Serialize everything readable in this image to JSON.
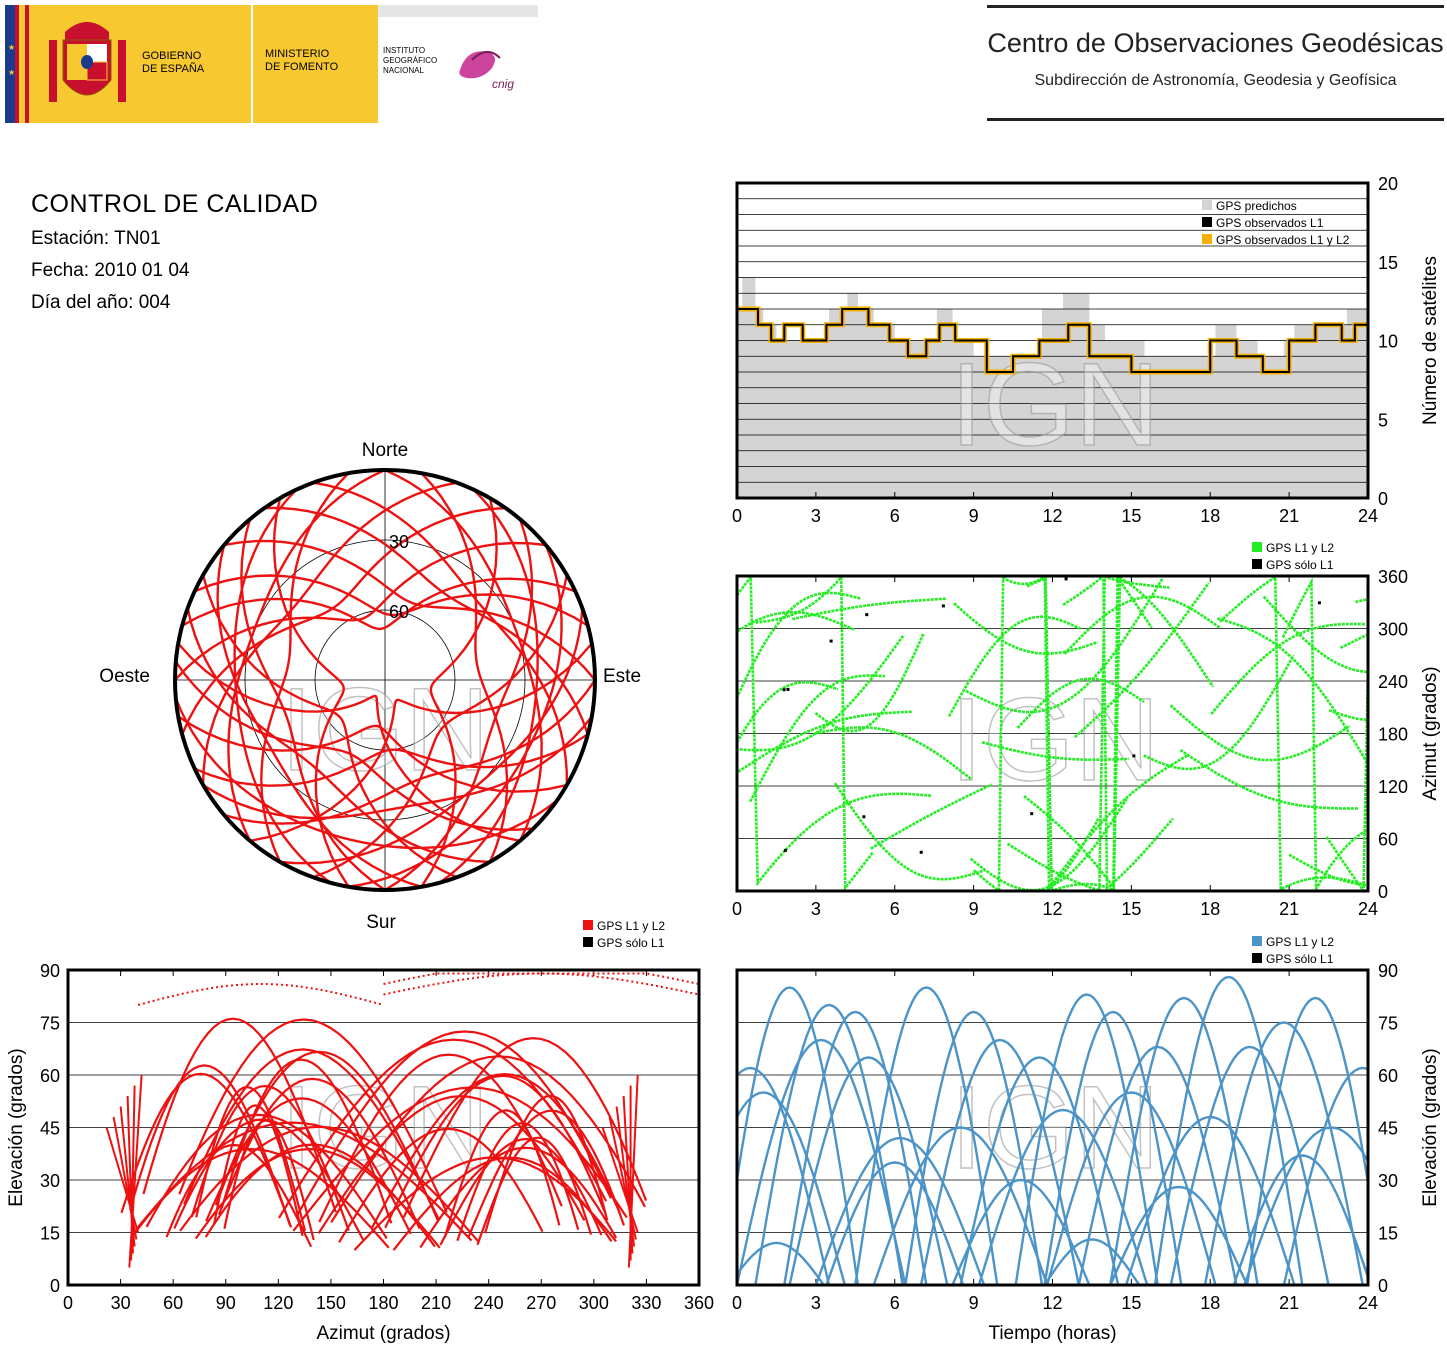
{
  "header": {
    "gobierno_line1": "GOBIERNO",
    "gobierno_line2": "DE ESPAÑA",
    "ministerio_line1": "MINISTERIO",
    "ministerio_line2": "DE FOMENTO",
    "ign_line1": "INSTITUTO",
    "ign_line2": "GEOGRÁFICO",
    "ign_line3": "NACIONAL",
    "cnig": "cnig",
    "center_title": "Centro de Observaciones Geodésicas",
    "center_subtitle": "Subdirección de Astronomía, Geodesia y Geofísica"
  },
  "info": {
    "title": "CONTROL DE CALIDAD",
    "station": "Estación: TN01",
    "date": "Fecha: 2010 01 04",
    "doy": "Día del año: 004"
  },
  "watermark": "IGN",
  "colors": {
    "red": "#ee1111",
    "green": "#22ee22",
    "blue": "#4c94c8",
    "gray": "#d4d4d4",
    "orange": "#f5b000",
    "black": "#000000"
  },
  "chart_data": [
    {
      "id": "satellite-count",
      "type": "area",
      "ylabel": "Número de satélites",
      "xlim": [
        0,
        24
      ],
      "ylim": [
        0,
        20
      ],
      "xticks": [
        0,
        3,
        6,
        9,
        12,
        15,
        18,
        21,
        24
      ],
      "yticks": [
        0,
        5,
        10,
        15,
        20
      ],
      "legend": [
        "GPS predichos",
        "GPS observados L1",
        "GPS observados L1 y L2"
      ],
      "legend_position": "top-right",
      "series": [
        {
          "name": "GPS predichos",
          "step_x": [
            0,
            0.2,
            0.7,
            1.0,
            1.5,
            2.0,
            3.2,
            3.5,
            4.2,
            4.6,
            5.2,
            6.0,
            7.0,
            7.6,
            8.2,
            9.0,
            10.0,
            11.6,
            12.4,
            13.4,
            14.0,
            15.5,
            17.4,
            18.2,
            19.0,
            19.8,
            20.8,
            21.2,
            22.0,
            23.2,
            24.0
          ],
          "y": [
            12,
            14,
            12,
            11,
            10,
            10,
            10,
            12,
            13,
            12,
            11,
            10,
            10,
            12,
            10,
            9,
            9,
            12,
            13,
            11,
            10,
            9,
            9,
            11,
            10,
            9,
            10,
            11,
            11,
            12,
            11
          ]
        },
        {
          "name": "GPS observados L1",
          "step_x": [
            0,
            0.8,
            1.3,
            1.8,
            2.5,
            3.4,
            4.0,
            5.0,
            5.8,
            6.5,
            7.2,
            7.7,
            8.3,
            9.5,
            10.5,
            11.5,
            12.6,
            13.4,
            14.2,
            15.0,
            16.0,
            17.3,
            18.0,
            19.0,
            20.0,
            21.0,
            22.0,
            23.0,
            23.5
          ],
          "y": [
            12,
            11,
            10,
            11,
            10,
            11,
            12,
            11,
            10,
            9,
            10,
            11,
            10,
            8,
            9,
            10,
            11,
            9,
            9,
            8,
            8,
            8,
            10,
            9,
            8,
            10,
            11,
            10,
            11
          ]
        },
        {
          "name": "GPS observados L1 y L2",
          "step_x": [
            0,
            0.8,
            1.3,
            1.8,
            2.5,
            3.4,
            4.0,
            5.0,
            5.8,
            6.5,
            7.2,
            7.7,
            8.3,
            9.5,
            10.5,
            11.5,
            12.6,
            13.4,
            14.2,
            15.0,
            16.0,
            17.3,
            18.0,
            19.0,
            20.0,
            21.0,
            22.0,
            23.0,
            23.5
          ],
          "y": [
            12,
            11,
            10,
            11,
            10,
            11,
            12,
            11,
            10,
            9,
            10,
            11,
            10,
            8,
            9,
            10,
            11,
            9,
            9,
            8,
            8,
            8,
            10,
            9,
            8,
            10,
            11,
            10,
            11
          ]
        }
      ]
    },
    {
      "id": "skyplot",
      "type": "scatter",
      "labels": {
        "north": "Norte",
        "south": "Sur",
        "east": "Este",
        "west": "Oeste"
      },
      "rings": [
        30,
        60
      ],
      "tracks": [
        {
          "peak_az": 5,
          "max_el": 62
        },
        {
          "peak_az": 20,
          "max_el": 55
        },
        {
          "peak_az": 35,
          "max_el": 45
        },
        {
          "peak_az": 50,
          "max_el": 38
        },
        {
          "peak_az": 70,
          "max_el": 30
        },
        {
          "peak_az": 95,
          "max_el": 25
        },
        {
          "peak_az": 120,
          "max_el": 22
        },
        {
          "peak_az": 140,
          "max_el": 30
        },
        {
          "peak_az": 160,
          "max_el": 45
        },
        {
          "peak_az": 175,
          "max_el": 60
        },
        {
          "peak_az": 190,
          "max_el": 70
        },
        {
          "peak_az": 205,
          "max_el": 55
        },
        {
          "peak_az": 220,
          "max_el": 42
        },
        {
          "peak_az": 240,
          "max_el": 33
        },
        {
          "peak_az": 265,
          "max_el": 26
        },
        {
          "peak_az": 290,
          "max_el": 30
        },
        {
          "peak_az": 310,
          "max_el": 40
        },
        {
          "peak_az": 325,
          "max_el": 52
        },
        {
          "peak_az": 340,
          "max_el": 62
        },
        {
          "peak_az": 355,
          "max_el": 68
        },
        {
          "peak_az": 100,
          "max_el": 70
        },
        {
          "peak_az": 260,
          "max_el": 72
        },
        {
          "peak_az": 150,
          "max_el": 80
        },
        {
          "peak_az": 210,
          "max_el": 82
        },
        {
          "peak_az": 80,
          "max_el": 50
        },
        {
          "peak_az": 280,
          "max_el": 48
        },
        {
          "peak_az": 130,
          "max_el": 58
        },
        {
          "peak_az": 230,
          "max_el": 65
        },
        {
          "peak_az": 170,
          "max_el": 35
        },
        {
          "peak_az": 195,
          "max_el": 20
        },
        {
          "peak_az": 110,
          "max_el": 40
        },
        {
          "peak_az": 250,
          "max_el": 45
        }
      ]
    },
    {
      "id": "azimuth-time",
      "type": "scatter",
      "ylabel": "Azimut (grados)",
      "xlim": [
        0,
        24
      ],
      "ylim": [
        0,
        360
      ],
      "xticks": [
        0,
        3,
        6,
        9,
        12,
        15,
        18,
        21,
        24
      ],
      "yticks": [
        0,
        60,
        120,
        180,
        240,
        300,
        360
      ],
      "legend": [
        "GPS L1 y L2",
        "GPS sólo L1"
      ],
      "legend_position": "top-right"
    },
    {
      "id": "elevation-azimuth",
      "type": "scatter",
      "xlabel": "Azimut (grados)",
      "ylabel": "Elevación (grados)",
      "xlim": [
        0,
        360
      ],
      "ylim": [
        0,
        90
      ],
      "xticks": [
        0,
        30,
        60,
        90,
        120,
        150,
        180,
        210,
        240,
        270,
        300,
        330,
        360
      ],
      "yticks": [
        0,
        15,
        30,
        45,
        60,
        75,
        90
      ],
      "legend": [
        "GPS L1 y L2",
        "GPS sólo L1"
      ],
      "legend_position": "top-right"
    },
    {
      "id": "elevation-time",
      "type": "line",
      "xlabel": "Tiempo (horas)",
      "ylabel": "Elevación (grados)",
      "xlim": [
        0,
        24
      ],
      "ylim": [
        0,
        90
      ],
      "xticks": [
        0,
        3,
        6,
        9,
        12,
        15,
        18,
        21,
        24
      ],
      "yticks": [
        0,
        15,
        30,
        45,
        60,
        75,
        90
      ],
      "legend": [
        "GPS L1 y L2",
        "GPS sólo L1"
      ],
      "legend_position": "top-right",
      "arcs": [
        {
          "t_peak": 2.0,
          "max_el": 85,
          "half_width": 2.6
        },
        {
          "t_peak": 3.5,
          "max_el": 80,
          "half_width": 2.8
        },
        {
          "t_peak": 4.5,
          "max_el": 78,
          "half_width": 2.7
        },
        {
          "t_peak": 7.2,
          "max_el": 85,
          "half_width": 2.7
        },
        {
          "t_peak": 9.0,
          "max_el": 78,
          "half_width": 2.6
        },
        {
          "t_peak": 13.3,
          "max_el": 83,
          "half_width": 2.7
        },
        {
          "t_peak": 14.3,
          "max_el": 78,
          "half_width": 2.6
        },
        {
          "t_peak": 17.0,
          "max_el": 82,
          "half_width": 2.8
        },
        {
          "t_peak": 18.7,
          "max_el": 88,
          "half_width": 2.8
        },
        {
          "t_peak": 22.0,
          "max_el": 82,
          "half_width": 2.6
        },
        {
          "t_peak": 5.0,
          "max_el": 65,
          "half_width": 3.0
        },
        {
          "t_peak": 10.0,
          "max_el": 70,
          "half_width": 3.0
        },
        {
          "t_peak": 11.5,
          "max_el": 65,
          "half_width": 3.0
        },
        {
          "t_peak": 16.0,
          "max_el": 68,
          "half_width": 3.0
        },
        {
          "t_peak": 20.8,
          "max_el": 75,
          "half_width": 3.0
        },
        {
          "t_peak": 19.5,
          "max_el": 68,
          "half_width": 3.0
        },
        {
          "t_peak": 3.2,
          "max_el": 70,
          "half_width": 3.2
        },
        {
          "t_peak": 15.0,
          "max_el": 55,
          "half_width": 3.2
        },
        {
          "t_peak": 0.5,
          "max_el": 62,
          "half_width": 3.0
        },
        {
          "t_peak": 23.8,
          "max_el": 62,
          "half_width": 3.0
        },
        {
          "t_peak": 1.0,
          "max_el": 55,
          "half_width": 3.1
        },
        {
          "t_peak": 6.2,
          "max_el": 42,
          "half_width": 3.2
        },
        {
          "t_peak": 8.5,
          "max_el": 45,
          "half_width": 3.3
        },
        {
          "t_peak": 12.4,
          "max_el": 50,
          "half_width": 3.2
        },
        {
          "t_peak": 18.0,
          "max_el": 48,
          "half_width": 3.2
        },
        {
          "t_peak": 22.6,
          "max_el": 45,
          "half_width": 3.3
        },
        {
          "t_peak": 6.0,
          "max_el": 35,
          "half_width": 2.6
        },
        {
          "t_peak": 10.8,
          "max_el": 30,
          "half_width": 2.6
        },
        {
          "t_peak": 16.8,
          "max_el": 28,
          "half_width": 2.6
        },
        {
          "t_peak": 21.5,
          "max_el": 37,
          "half_width": 2.6
        },
        {
          "t_peak": 1.5,
          "max_el": 12,
          "half_width": 1.8
        },
        {
          "t_peak": 13.5,
          "max_el": 13,
          "half_width": 1.8
        }
      ]
    }
  ]
}
